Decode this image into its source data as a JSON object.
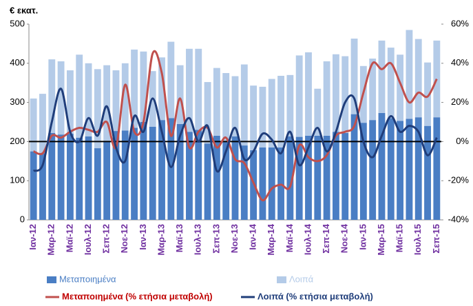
{
  "chart_data": {
    "type": "bar",
    "stacked": true,
    "y_axis_label": "€ εκατ.",
    "categories": [
      "Ιαν-12",
      null,
      "Μαρ-12",
      null,
      "Μαϊ-12",
      null,
      "Ιουλ-12",
      null,
      "Σεπ-12",
      null,
      "Νοε-12",
      null,
      "Ιαν-13",
      null,
      "Μαρ-13",
      null,
      "Μαϊ-13",
      null,
      "Ιουλ-13",
      null,
      "Σεπ-13",
      null,
      "Νοε-13",
      null,
      "Ιαν-14",
      null,
      "Μαρ-14",
      null,
      "Μαϊ-14",
      null,
      "Ιουλ-14",
      null,
      "Σεπ-14",
      null,
      "Νοε-14",
      null,
      "Ιαν-15",
      null,
      "Μαρ-15",
      null,
      "Μαϊ-15",
      null,
      "Ιουλ-15",
      null,
      "Σεπ-15"
    ],
    "series": [
      {
        "name": "Μεταποιημένα",
        "type": "bar",
        "color": "#4a7ec4",
        "values": [
          175,
          170,
          222,
          218,
          220,
          210,
          213,
          183,
          200,
          227,
          228,
          235,
          250,
          238,
          255,
          260,
          245,
          225,
          230,
          195,
          215,
          200,
          213,
          190,
          178,
          185,
          185,
          185,
          213,
          212,
          215,
          215,
          215,
          225,
          222,
          270,
          248,
          255,
          273,
          260,
          253,
          258,
          262,
          240,
          262
        ]
      },
      {
        "name": "Λοιπά",
        "type": "bar",
        "color": "#b4cbe8",
        "values": [
          135,
          152,
          188,
          187,
          162,
          212,
          187,
          202,
          195,
          155,
          172,
          200,
          180,
          142,
          160,
          195,
          150,
          212,
          207,
          157,
          173,
          175,
          154,
          207,
          165,
          155,
          175,
          183,
          157,
          208,
          213,
          120,
          190,
          198,
          196,
          193,
          145,
          157,
          185,
          180,
          169,
          227,
          200,
          162,
          196
        ]
      },
      {
        "name": "Μεταποιημένα (% ετήσια μεταβολή)",
        "type": "line",
        "axis": "y2",
        "color": "#c0504d",
        "values": [
          -5,
          -6,
          3,
          2,
          5,
          7,
          6,
          5,
          10,
          -3,
          29,
          5,
          10,
          45,
          35,
          3,
          22,
          -3,
          5,
          7,
          -3,
          2,
          -9,
          -11,
          -21,
          -30,
          -24,
          -22,
          -23,
          -2,
          -8,
          -10,
          -7,
          3,
          5,
          8,
          25,
          40,
          37,
          40,
          30,
          20,
          25,
          23,
          32
        ]
      },
      {
        "name": "Λοιπά (% ετήσια μεταβολή)",
        "type": "line",
        "axis": "y2",
        "color": "#1f3d7a",
        "values": [
          -15,
          -12,
          10,
          27,
          5,
          0,
          12,
          3,
          18,
          -3,
          -10,
          13,
          5,
          22,
          5,
          -13,
          3,
          12,
          0,
          8,
          -15,
          -5,
          7,
          -9,
          -5,
          4,
          1,
          -6,
          5,
          -12,
          -3,
          7,
          -5,
          5,
          20,
          22,
          0,
          -8,
          3,
          13,
          5,
          8,
          5,
          -7,
          2
        ]
      }
    ],
    "ylim": [
      0,
      500
    ],
    "yticks": [
      0,
      100,
      200,
      300,
      400,
      500
    ],
    "y2lim": [
      -40,
      60
    ],
    "y2ticks": [
      {
        "value": -40,
        "label": "-40%"
      },
      {
        "value": -20,
        "label": "-20%"
      },
      {
        "value": 0,
        "label": "0%"
      },
      {
        "value": 20,
        "label": "20%"
      },
      {
        "value": 40,
        "label": "40%"
      },
      {
        "value": 60,
        "label": "60%"
      }
    ]
  }
}
